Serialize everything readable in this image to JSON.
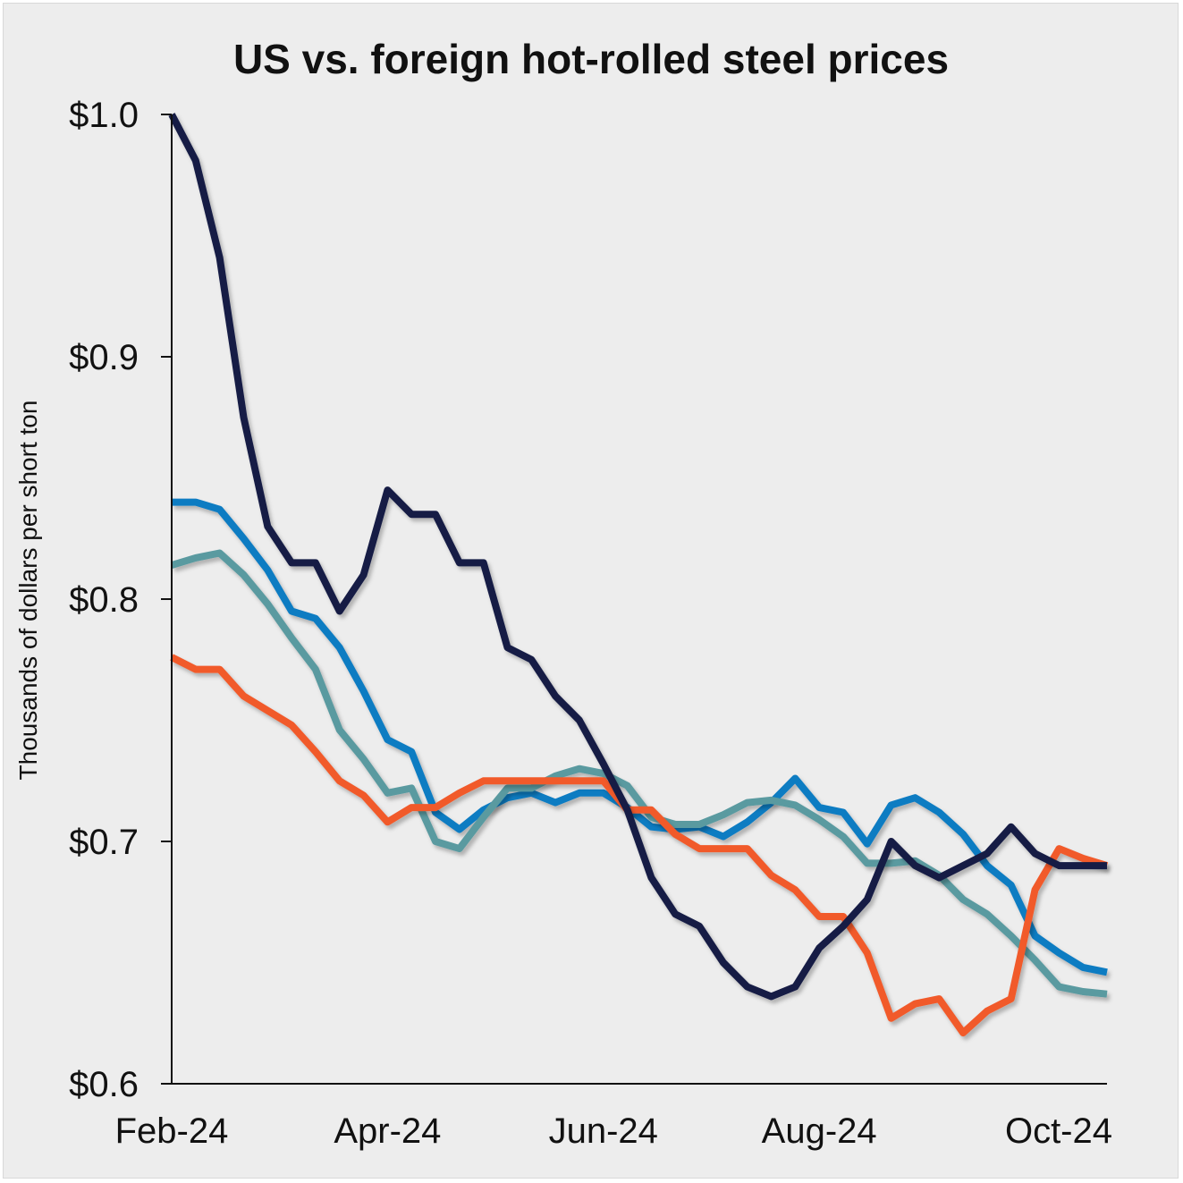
{
  "chart_data": {
    "type": "line",
    "title": "US vs. foreign hot-rolled steel prices",
    "xlabel": "",
    "ylabel": "Thousands of dollars per short ton",
    "ylim": [
      0.6,
      1.0
    ],
    "yticks": [
      {
        "value": 0.6,
        "label": "$0.6"
      },
      {
        "value": 0.7,
        "label": "$0.7"
      },
      {
        "value": 0.8,
        "label": "$0.8"
      },
      {
        "value": 0.9,
        "label": "$0.9"
      },
      {
        "value": 1.0,
        "label": "$1.0"
      }
    ],
    "xticks": [
      {
        "index": 0,
        "label": "Feb-24"
      },
      {
        "index": 9,
        "label": "Apr-24"
      },
      {
        "index": 18,
        "label": "Jun-24"
      },
      {
        "index": 27,
        "label": "Aug-24"
      },
      {
        "index": 36,
        "label": "Oct-24"
      }
    ],
    "x_count": 40,
    "grid": false,
    "legend": "none",
    "series": [
      {
        "color": "#0e7bc2",
        "values": [
          0.84,
          0.84,
          0.837,
          0.825,
          0.812,
          0.795,
          0.792,
          0.78,
          0.762,
          0.742,
          0.737,
          0.712,
          0.705,
          0.713,
          0.718,
          0.72,
          0.716,
          0.72,
          0.72,
          0.714,
          0.706,
          0.705,
          0.706,
          0.702,
          0.708,
          0.716,
          0.726,
          0.714,
          0.712,
          0.699,
          0.715,
          0.718,
          0.712,
          0.703,
          0.69,
          0.682,
          0.661,
          0.654,
          0.648,
          0.646
        ]
      },
      {
        "color": "#5a9aa0",
        "values": [
          0.814,
          0.817,
          0.819,
          0.81,
          0.798,
          0.784,
          0.771,
          0.746,
          0.734,
          0.72,
          0.722,
          0.7,
          0.697,
          0.71,
          0.722,
          0.722,
          0.727,
          0.73,
          0.728,
          0.723,
          0.71,
          0.707,
          0.707,
          0.711,
          0.716,
          0.717,
          0.715,
          0.709,
          0.702,
          0.691,
          0.691,
          0.692,
          0.686,
          0.676,
          0.67,
          0.661,
          0.651,
          0.64,
          0.638,
          0.637
        ]
      },
      {
        "color": "#f15a2b",
        "values": [
          0.776,
          0.771,
          0.771,
          0.76,
          0.754,
          0.748,
          0.737,
          0.725,
          0.719,
          0.708,
          0.714,
          0.714,
          0.72,
          0.725,
          0.725,
          0.725,
          0.725,
          0.725,
          0.725,
          0.713,
          0.713,
          0.703,
          0.697,
          0.697,
          0.697,
          0.686,
          0.68,
          0.669,
          0.669,
          0.654,
          0.627,
          0.633,
          0.635,
          0.621,
          0.63,
          0.635,
          0.68,
          0.697,
          0.693,
          0.69
        ]
      },
      {
        "color": "#161d45",
        "values": [
          1.0,
          0.981,
          0.941,
          0.875,
          0.83,
          0.815,
          0.815,
          0.795,
          0.81,
          0.845,
          0.835,
          0.835,
          0.815,
          0.815,
          0.78,
          0.775,
          0.76,
          0.75,
          0.732,
          0.713,
          0.685,
          0.67,
          0.665,
          0.65,
          0.64,
          0.636,
          0.64,
          0.656,
          0.665,
          0.676,
          0.7,
          0.69,
          0.685,
          0.69,
          0.695,
          0.706,
          0.695,
          0.69,
          0.69,
          0.69
        ]
      }
    ]
  }
}
